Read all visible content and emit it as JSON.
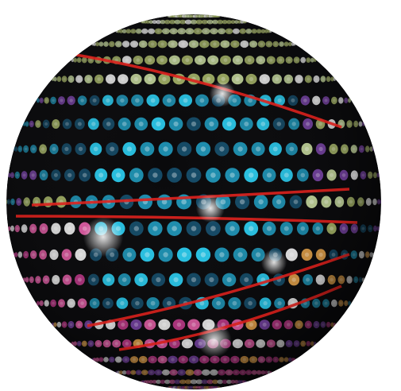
{
  "image": {
    "subject": "disco-ball",
    "background_color": "#ffffff",
    "sphere_base_color": "#0a0a0c",
    "stripe_color": "#e0201c",
    "palette": {
      "cyan": "#29c6e8",
      "teal": "#1d8fb0",
      "deep_blue": "#144a66",
      "pink": "#e65fa8",
      "magenta": "#c23a8c",
      "olive": "#a9b86a",
      "pale_green": "#c9dca0",
      "white": "#f4f4f4",
      "purple": "#7a45a8",
      "orange": "#e3a24a"
    }
  }
}
